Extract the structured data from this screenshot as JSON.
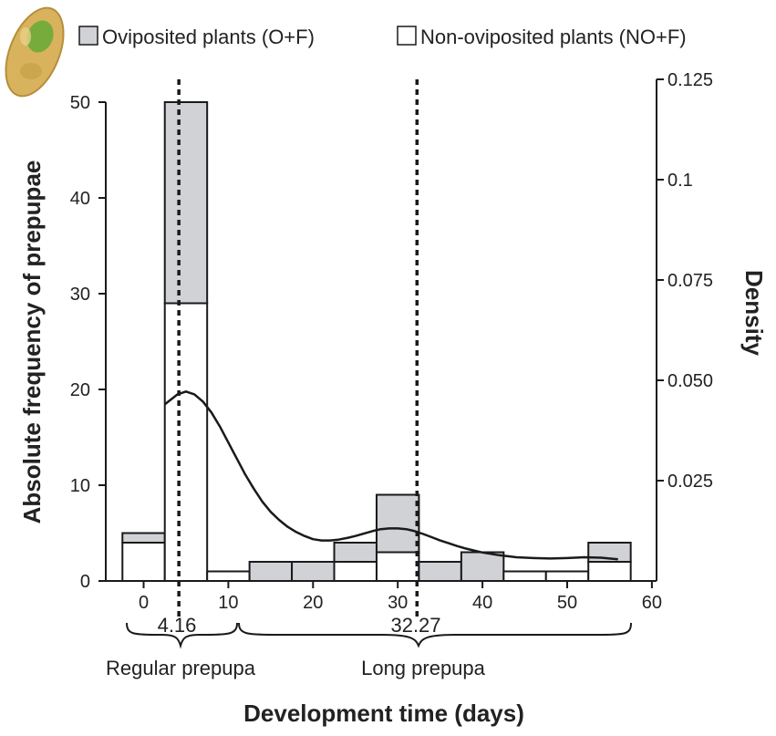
{
  "chart_data": {
    "type": "histogram",
    "bin_width": 5,
    "bins": [
      {
        "x": 0,
        "non_oviposited": 4,
        "total": 5
      },
      {
        "x": 5,
        "non_oviposited": 29,
        "total": 50
      },
      {
        "x": 10,
        "non_oviposited": 1,
        "total": 1
      },
      {
        "x": 15,
        "non_oviposited": 0,
        "total": 2
      },
      {
        "x": 20,
        "non_oviposited": 0,
        "total": 2
      },
      {
        "x": 25,
        "non_oviposited": 2,
        "total": 4
      },
      {
        "x": 30,
        "non_oviposited": 3,
        "total": 9
      },
      {
        "x": 35,
        "non_oviposited": 0,
        "total": 2
      },
      {
        "x": 40,
        "non_oviposited": 0,
        "total": 3
      },
      {
        "x": 45,
        "non_oviposited": 1,
        "total": 1
      },
      {
        "x": 50,
        "non_oviposited": 1,
        "total": 1
      },
      {
        "x": 55,
        "non_oviposited": 2,
        "total": 4
      }
    ],
    "density_curve": {
      "x": [
        2.5,
        4,
        5,
        6,
        7,
        8,
        9,
        10,
        11,
        12,
        13,
        14,
        15,
        16,
        17,
        18,
        19,
        20,
        21,
        22,
        23,
        24,
        25,
        26,
        27,
        28,
        29,
        30,
        31,
        32,
        33,
        34,
        35,
        36,
        37,
        38,
        39,
        40,
        42,
        44,
        46,
        48,
        50,
        52,
        54,
        56
      ],
      "y": [
        0.044,
        0.0465,
        0.0472,
        0.0465,
        0.0447,
        0.042,
        0.0385,
        0.0345,
        0.0305,
        0.0265,
        0.023,
        0.0198,
        0.0172,
        0.0152,
        0.0135,
        0.0122,
        0.0112,
        0.0104,
        0.0101,
        0.0101,
        0.0103,
        0.0107,
        0.0112,
        0.0118,
        0.0124,
        0.0129,
        0.0131,
        0.0131,
        0.0129,
        0.0124,
        0.0117,
        0.0109,
        0.0101,
        0.0094,
        0.0087,
        0.0081,
        0.0076,
        0.0071,
        0.0064,
        0.0059,
        0.0057,
        0.0056,
        0.0057,
        0.0059,
        0.0058,
        0.0054
      ]
    },
    "vlines": [
      4.16,
      32.27
    ],
    "xlim": [
      -5,
      60
    ],
    "ylim": [
      0,
      50
    ],
    "y2lim": [
      0,
      0.125
    ],
    "x_ticks": [
      0,
      10,
      20,
      30,
      40,
      50,
      60
    ],
    "y_ticks": [
      0,
      10,
      20,
      30,
      40,
      50
    ],
    "y2_ticks": [
      "0.025",
      "0.050",
      "0.075",
      "0.1",
      "0.125"
    ],
    "xlabel": "Development time (days)",
    "ylabel": "Absolute frequency of prepupae",
    "y2label": "Density",
    "legend": {
      "oviposited": "Oviposited plants (O+F)",
      "non_oviposited": "Non-oviposited plants (NO+F)"
    },
    "annotations": {
      "regular_value": "4.16",
      "long_value": "32.27",
      "regular_label": "Regular prepupa",
      "long_label": "Long prepupa"
    },
    "colors": {
      "oviposited_fill": "#d0d2d5",
      "non_oviposited_fill": "#ffffff",
      "stroke": "#1a1a1a",
      "larva_body": "#d8b25c",
      "larva_green": "#6dab3a"
    }
  }
}
